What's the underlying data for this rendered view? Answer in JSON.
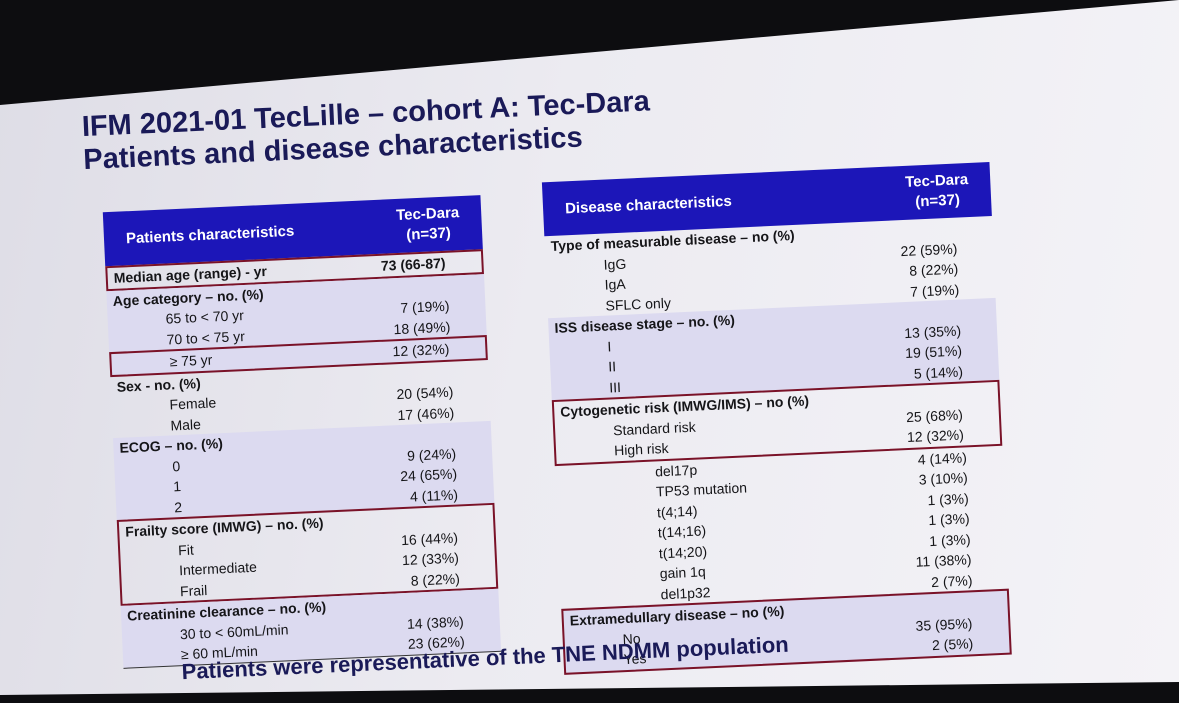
{
  "title": {
    "line1": "IFM 2021-01 TecLille – cohort A: Tec-Dara",
    "line2": "Patients and disease characteristics"
  },
  "left_table": {
    "header_label": "Patients characteristics",
    "header_col_line1": "Tec-Dara",
    "header_col_line2": "(n=37)",
    "median_age_label": "Median age (range) - yr",
    "median_age_value": "73 (66-87)",
    "age": {
      "label": "Age category – no. (%)",
      "r1_label": "65 to < 70 yr",
      "r1_value": "7 (19%)",
      "r2_label": "70 to < 75 yr",
      "r2_value": "18 (49%)",
      "r3_label": "≥ 75 yr",
      "r3_value": "12 (32%)"
    },
    "sex": {
      "label": "Sex - no. (%)",
      "r1_label": "Female",
      "r1_value": "20 (54%)",
      "r2_label": "Male",
      "r2_value": "17 (46%)"
    },
    "ecog": {
      "label": "ECOG – no. (%)",
      "r1_label": "0",
      "r1_value": "9 (24%)",
      "r2_label": "1",
      "r2_value": "24 (65%)",
      "r3_label": "2",
      "r3_value": "4 (11%)"
    },
    "frailty": {
      "label": "Frailty score (IMWG) – no. (%)",
      "r1_label": "Fit",
      "r1_value": "16 (44%)",
      "r2_label": "Intermediate",
      "r2_value": "12 (33%)",
      "r3_label": "Frail",
      "r3_value": "8 (22%)"
    },
    "creat": {
      "label": "Creatinine clearance – no. (%)",
      "r1_label": "30 to < 60mL/min",
      "r1_value": "14 (38%)",
      "r2_label": "≥ 60 mL/min",
      "r2_value": "23 (62%)"
    }
  },
  "right_table": {
    "header_label": "Disease characteristics",
    "header_col_line1": "Tec-Dara",
    "header_col_line2": "(n=37)",
    "measurable": {
      "label": "Type of measurable disease – no (%)",
      "r1_label": "IgG",
      "r1_value": "22 (59%)",
      "r2_label": "IgA",
      "r2_value": "8 (22%)",
      "r3_label": "SFLC only",
      "r3_value": "7 (19%)"
    },
    "iss": {
      "label": "ISS disease stage – no. (%)",
      "r1_label": "I",
      "r1_value": "13 (35%)",
      "r2_label": "II",
      "r2_value": "19 (51%)",
      "r3_label": "III",
      "r3_value": "5 (14%)"
    },
    "cyto": {
      "label": "Cytogenetic risk (IMWG/IMS) – no (%)",
      "r1_label": "Standard risk",
      "r1_value": "25 (68%)",
      "r2_label": "High risk",
      "r2_value": "12 (32%)"
    },
    "hr_sub": [
      {
        "label": "del17p",
        "value": "4 (14%)"
      },
      {
        "label": "TP53 mutation",
        "value": "3 (10%)"
      },
      {
        "label": "t(4;14)",
        "value": "1 (3%)"
      },
      {
        "label": "t(14;16)",
        "value": "1 (3%)"
      },
      {
        "label": "t(14;20)",
        "value": "1 (3%)"
      },
      {
        "label": "gain 1q",
        "value": "11 (38%)"
      },
      {
        "label": "del1p32",
        "value": "2 (7%)"
      }
    ],
    "emd": {
      "label": "Extramedullary disease – no (%)",
      "r1_label": "No",
      "r1_value": "35 (95%)",
      "r2_label": "Yes",
      "r2_value": "2 (5%)"
    }
  },
  "footer": "Patients were representative of the TNE NDMM population"
}
